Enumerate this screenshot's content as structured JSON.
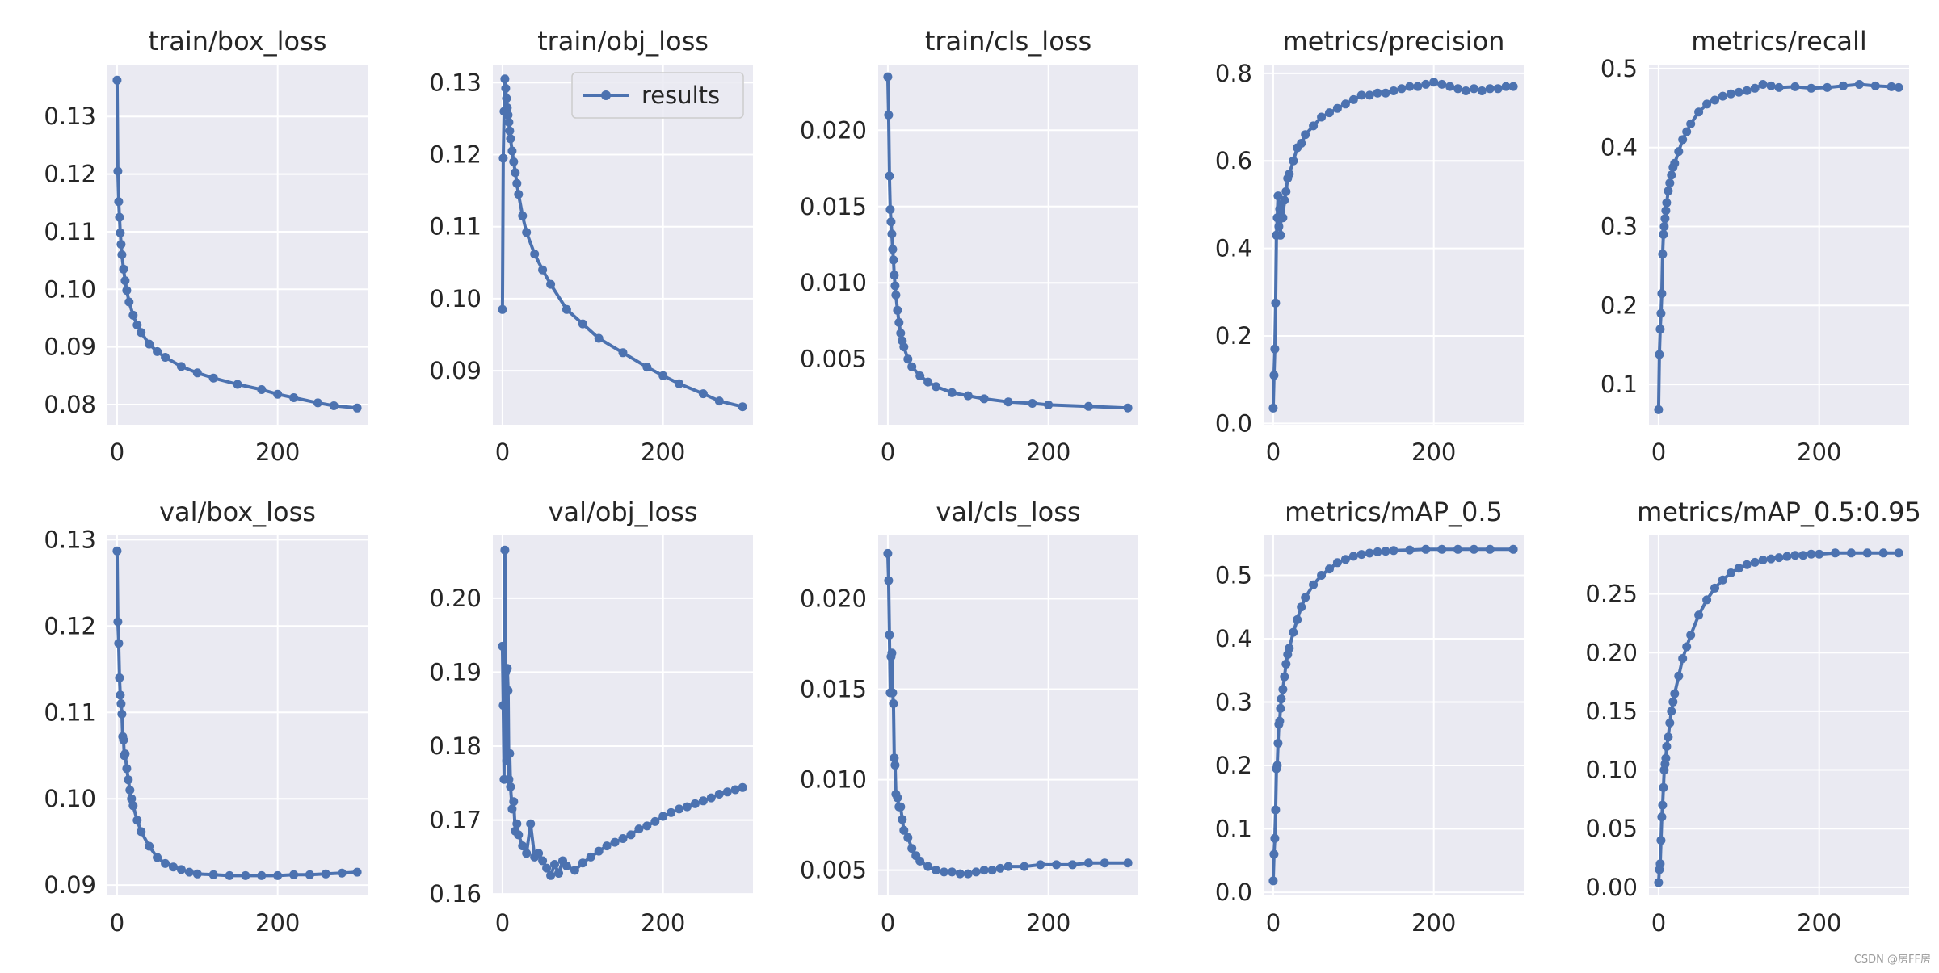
{
  "style": {
    "axes_bg": "#EAEAF2",
    "grid_color": "#FFFFFF",
    "line_color": "#4C72B0",
    "text_color": "#262626"
  },
  "watermark": "CSDN @房FF房",
  "chart_data": [
    {
      "type": "line",
      "title": "train/box_loss",
      "xlim": [
        -12,
        312
      ],
      "ylim": [
        0.0765,
        0.139
      ],
      "xticks": [
        0,
        200
      ],
      "yticks": [
        0.08,
        0.09,
        0.1,
        0.11,
        0.12,
        0.13
      ],
      "ytick_labels": [
        "0.08",
        "0.09",
        "0.10",
        "0.11",
        "0.12",
        "0.13"
      ],
      "grid": true,
      "series": [
        {
          "x": [
            0,
            1,
            2,
            3,
            4,
            5,
            6,
            8,
            10,
            12,
            15,
            20,
            25,
            30,
            40,
            50,
            60,
            80,
            100,
            120,
            150,
            180,
            200,
            220,
            250,
            270,
            299
          ],
          "y": [
            0.1363,
            0.1205,
            0.1152,
            0.1125,
            0.1098,
            0.1078,
            0.106,
            0.1035,
            0.1015,
            0.0998,
            0.0978,
            0.0955,
            0.0938,
            0.0925,
            0.0905,
            0.0892,
            0.0882,
            0.0866,
            0.0855,
            0.0846,
            0.0835,
            0.0826,
            0.0818,
            0.0812,
            0.0803,
            0.0798,
            0.0794
          ]
        }
      ]
    },
    {
      "type": "line",
      "title": "train/obj_loss",
      "xlim": [
        -12,
        312
      ],
      "ylim": [
        0.0825,
        0.1325
      ],
      "xticks": [
        0,
        200
      ],
      "yticks": [
        0.09,
        0.1,
        0.11,
        0.12,
        0.13
      ],
      "ytick_labels": [
        "0.09",
        "0.10",
        "0.11",
        "0.12",
        "0.13"
      ],
      "grid": true,
      "legend": {
        "label": "results",
        "placement": "top-right"
      },
      "series": [
        {
          "name": "results",
          "x": [
            0,
            1,
            2,
            3,
            4,
            5,
            6,
            7,
            8,
            9,
            10,
            12,
            14,
            16,
            18,
            20,
            25,
            30,
            40,
            50,
            60,
            80,
            100,
            120,
            150,
            180,
            200,
            220,
            250,
            270,
            299
          ],
          "y": [
            0.0985,
            0.1195,
            0.126,
            0.1305,
            0.1292,
            0.1278,
            0.1265,
            0.1255,
            0.1245,
            0.1233,
            0.1222,
            0.1205,
            0.119,
            0.1175,
            0.116,
            0.1145,
            0.1115,
            0.1092,
            0.1062,
            0.104,
            0.102,
            0.0985,
            0.0965,
            0.0945,
            0.0925,
            0.0905,
            0.0893,
            0.0882,
            0.0868,
            0.0858,
            0.085
          ]
        }
      ]
    },
    {
      "type": "line",
      "title": "train/cls_loss",
      "xlim": [
        -12,
        312
      ],
      "ylim": [
        0.0007,
        0.0243
      ],
      "xticks": [
        0,
        200
      ],
      "yticks": [
        0.005,
        0.01,
        0.015,
        0.02
      ],
      "ytick_labels": [
        "0.005",
        "0.010",
        "0.015",
        "0.020"
      ],
      "grid": true,
      "series": [
        {
          "x": [
            0,
            1,
            2,
            3,
            4,
            5,
            6,
            7,
            8,
            9,
            10,
            12,
            14,
            16,
            18,
            20,
            25,
            30,
            40,
            50,
            60,
            80,
            100,
            120,
            150,
            180,
            200,
            250,
            299
          ],
          "y": [
            0.0235,
            0.021,
            0.017,
            0.0148,
            0.014,
            0.0132,
            0.0122,
            0.0115,
            0.0105,
            0.0098,
            0.0092,
            0.0082,
            0.0074,
            0.0067,
            0.0062,
            0.0058,
            0.005,
            0.0045,
            0.0039,
            0.0035,
            0.0032,
            0.0028,
            0.0026,
            0.0024,
            0.0022,
            0.0021,
            0.002,
            0.0019,
            0.0018
          ]
        }
      ]
    },
    {
      "type": "line",
      "title": "metrics/precision",
      "xlim": [
        -12,
        312
      ],
      "ylim": [
        -0.003,
        0.82
      ],
      "xticks": [
        0,
        200
      ],
      "yticks": [
        0.0,
        0.2,
        0.4,
        0.6,
        0.8
      ],
      "ytick_labels": [
        "0.0",
        "0.2",
        "0.4",
        "0.6",
        "0.8"
      ],
      "grid": true,
      "series": [
        {
          "x": [
            0,
            1,
            2,
            3,
            4,
            5,
            6,
            7,
            8,
            9,
            10,
            12,
            14,
            16,
            18,
            20,
            25,
            30,
            35,
            40,
            50,
            60,
            70,
            80,
            90,
            100,
            110,
            120,
            130,
            140,
            150,
            160,
            170,
            180,
            190,
            200,
            210,
            220,
            230,
            240,
            250,
            260,
            270,
            280,
            290,
            299
          ],
          "y": [
            0.035,
            0.11,
            0.17,
            0.275,
            0.43,
            0.47,
            0.52,
            0.45,
            0.49,
            0.43,
            0.5,
            0.47,
            0.51,
            0.53,
            0.56,
            0.57,
            0.6,
            0.63,
            0.64,
            0.66,
            0.68,
            0.7,
            0.71,
            0.72,
            0.73,
            0.74,
            0.75,
            0.75,
            0.755,
            0.755,
            0.76,
            0.765,
            0.77,
            0.77,
            0.775,
            0.78,
            0.775,
            0.77,
            0.765,
            0.76,
            0.765,
            0.76,
            0.765,
            0.765,
            0.77,
            0.77
          ]
        }
      ]
    },
    {
      "type": "line",
      "title": "metrics/recall",
      "xlim": [
        -12,
        312
      ],
      "ylim": [
        0.049,
        0.505
      ],
      "xticks": [
        0,
        200
      ],
      "yticks": [
        0.1,
        0.2,
        0.3,
        0.4,
        0.5
      ],
      "ytick_labels": [
        "0.1",
        "0.2",
        "0.3",
        "0.4",
        "0.5"
      ],
      "grid": true,
      "series": [
        {
          "x": [
            0,
            1,
            2,
            3,
            4,
            5,
            6,
            7,
            8,
            9,
            10,
            12,
            14,
            16,
            18,
            20,
            25,
            30,
            35,
            40,
            50,
            60,
            70,
            80,
            90,
            100,
            110,
            120,
            130,
            140,
            150,
            170,
            190,
            210,
            230,
            250,
            270,
            290,
            299
          ],
          "y": [
            0.068,
            0.138,
            0.17,
            0.19,
            0.215,
            0.265,
            0.29,
            0.3,
            0.31,
            0.32,
            0.33,
            0.345,
            0.355,
            0.365,
            0.375,
            0.38,
            0.395,
            0.41,
            0.42,
            0.43,
            0.445,
            0.455,
            0.46,
            0.465,
            0.468,
            0.47,
            0.472,
            0.475,
            0.48,
            0.478,
            0.476,
            0.477,
            0.475,
            0.476,
            0.478,
            0.48,
            0.478,
            0.477,
            0.476
          ]
        }
      ]
    },
    {
      "type": "line",
      "title": "val/box_loss",
      "xlim": [
        -12,
        312
      ],
      "ylim": [
        0.0888,
        0.1305
      ],
      "xticks": [
        0,
        200
      ],
      "yticks": [
        0.09,
        0.1,
        0.11,
        0.12,
        0.13
      ],
      "ytick_labels": [
        "0.09",
        "0.10",
        "0.11",
        "0.12",
        "0.13"
      ],
      "grid": true,
      "series": [
        {
          "x": [
            0,
            1,
            2,
            3,
            4,
            5,
            6,
            7,
            8,
            9,
            10,
            12,
            14,
            16,
            18,
            20,
            25,
            30,
            40,
            50,
            60,
            70,
            80,
            90,
            100,
            120,
            140,
            160,
            180,
            200,
            220,
            240,
            260,
            280,
            299
          ],
          "y": [
            0.1287,
            0.1205,
            0.118,
            0.114,
            0.112,
            0.111,
            0.1098,
            0.1072,
            0.1068,
            0.105,
            0.1052,
            0.1035,
            0.1022,
            0.101,
            0.1,
            0.0992,
            0.0975,
            0.0962,
            0.0945,
            0.0932,
            0.0925,
            0.0921,
            0.0918,
            0.0915,
            0.0913,
            0.0912,
            0.0911,
            0.0911,
            0.0911,
            0.0911,
            0.0912,
            0.0912,
            0.0913,
            0.0914,
            0.0915
          ]
        }
      ]
    },
    {
      "type": "line",
      "title": "val/obj_loss",
      "xlim": [
        -12,
        312
      ],
      "ylim": [
        0.1598,
        0.2085
      ],
      "xticks": [
        0,
        200
      ],
      "yticks": [
        0.16,
        0.17,
        0.18,
        0.19,
        0.2
      ],
      "ytick_labels": [
        "0.16",
        "0.17",
        "0.18",
        "0.19",
        "0.20"
      ],
      "grid": true,
      "series": [
        {
          "x": [
            0,
            1,
            2,
            3,
            4,
            5,
            6,
            7,
            8,
            9,
            10,
            12,
            14,
            16,
            18,
            20,
            25,
            30,
            35,
            40,
            45,
            50,
            55,
            60,
            65,
            70,
            75,
            80,
            90,
            100,
            110,
            120,
            130,
            140,
            150,
            160,
            170,
            180,
            190,
            200,
            210,
            220,
            230,
            240,
            250,
            260,
            270,
            280,
            290,
            299
          ],
          "y": [
            0.1935,
            0.1855,
            0.1755,
            0.2065,
            0.19,
            0.178,
            0.1905,
            0.1875,
            0.1755,
            0.179,
            0.1745,
            0.1715,
            0.1725,
            0.1685,
            0.1695,
            0.168,
            0.1665,
            0.1655,
            0.1695,
            0.165,
            0.1655,
            0.1645,
            0.1635,
            0.1625,
            0.164,
            0.1628,
            0.1645,
            0.1638,
            0.1632,
            0.1642,
            0.165,
            0.1658,
            0.1665,
            0.167,
            0.1675,
            0.168,
            0.1688,
            0.1692,
            0.1698,
            0.1705,
            0.171,
            0.1715,
            0.1718,
            0.1722,
            0.1726,
            0.173,
            0.1735,
            0.1738,
            0.1741,
            0.1744
          ]
        }
      ]
    },
    {
      "type": "line",
      "title": "val/cls_loss",
      "xlim": [
        -12,
        312
      ],
      "ylim": [
        0.0036,
        0.0235
      ],
      "xticks": [
        0,
        200
      ],
      "yticks": [
        0.005,
        0.01,
        0.015,
        0.02
      ],
      "ytick_labels": [
        "0.005",
        "0.010",
        "0.015",
        "0.020"
      ],
      "grid": true,
      "series": [
        {
          "x": [
            0,
            1,
            2,
            3,
            4,
            5,
            6,
            7,
            8,
            9,
            10,
            12,
            14,
            16,
            18,
            20,
            25,
            30,
            35,
            40,
            50,
            60,
            70,
            80,
            90,
            100,
            110,
            120,
            130,
            140,
            150,
            170,
            190,
            210,
            230,
            250,
            270,
            299
          ],
          "y": [
            0.0225,
            0.021,
            0.018,
            0.0148,
            0.0168,
            0.017,
            0.0148,
            0.0142,
            0.0112,
            0.0108,
            0.0092,
            0.009,
            0.0085,
            0.0085,
            0.0078,
            0.0072,
            0.0068,
            0.0062,
            0.0058,
            0.0055,
            0.0052,
            0.005,
            0.0049,
            0.0049,
            0.0048,
            0.0048,
            0.0049,
            0.005,
            0.005,
            0.0051,
            0.0052,
            0.0052,
            0.0053,
            0.0053,
            0.0053,
            0.0054,
            0.0054,
            0.0054
          ]
        }
      ]
    },
    {
      "type": "line",
      "title": "metrics/mAP_0.5",
      "xlim": [
        -12,
        312
      ],
      "ylim": [
        -0.005,
        0.563
      ],
      "xticks": [
        0,
        200
      ],
      "yticks": [
        0.0,
        0.1,
        0.2,
        0.3,
        0.4,
        0.5
      ],
      "ytick_labels": [
        "0.0",
        "0.1",
        "0.2",
        "0.3",
        "0.4",
        "0.5"
      ],
      "grid": true,
      "series": [
        {
          "x": [
            0,
            1,
            2,
            3,
            4,
            5,
            6,
            7,
            8,
            9,
            10,
            12,
            14,
            16,
            18,
            20,
            25,
            30,
            35,
            40,
            50,
            60,
            70,
            80,
            90,
            100,
            110,
            120,
            130,
            140,
            150,
            170,
            190,
            210,
            230,
            250,
            270,
            299
          ],
          "y": [
            0.018,
            0.06,
            0.085,
            0.13,
            0.195,
            0.2,
            0.235,
            0.265,
            0.27,
            0.29,
            0.305,
            0.32,
            0.34,
            0.36,
            0.375,
            0.385,
            0.41,
            0.43,
            0.45,
            0.465,
            0.485,
            0.5,
            0.51,
            0.52,
            0.525,
            0.53,
            0.533,
            0.535,
            0.537,
            0.538,
            0.539,
            0.54,
            0.541,
            0.541,
            0.541,
            0.541,
            0.541,
            0.541
          ]
        }
      ]
    },
    {
      "type": "line",
      "title": "metrics/mAP_0.5:0.95",
      "xlim": [
        -12,
        312
      ],
      "ylim": [
        -0.007,
        0.3
      ],
      "xticks": [
        0,
        200
      ],
      "yticks": [
        0.0,
        0.05,
        0.1,
        0.15,
        0.2,
        0.25
      ],
      "ytick_labels": [
        "0.00",
        "0.05",
        "0.10",
        "0.15",
        "0.20",
        "0.25"
      ],
      "grid": true,
      "series": [
        {
          "x": [
            0,
            1,
            2,
            3,
            4,
            5,
            6,
            7,
            8,
            9,
            10,
            12,
            14,
            16,
            18,
            20,
            25,
            30,
            35,
            40,
            50,
            60,
            70,
            80,
            90,
            100,
            110,
            120,
            130,
            140,
            150,
            160,
            170,
            180,
            190,
            200,
            220,
            240,
            260,
            280,
            299
          ],
          "y": [
            0.004,
            0.015,
            0.02,
            0.04,
            0.06,
            0.07,
            0.085,
            0.1,
            0.105,
            0.11,
            0.12,
            0.128,
            0.14,
            0.15,
            0.158,
            0.165,
            0.18,
            0.195,
            0.205,
            0.215,
            0.232,
            0.245,
            0.255,
            0.262,
            0.268,
            0.272,
            0.275,
            0.277,
            0.279,
            0.28,
            0.281,
            0.282,
            0.283,
            0.283,
            0.284,
            0.284,
            0.285,
            0.285,
            0.285,
            0.285,
            0.285
          ]
        }
      ]
    }
  ]
}
